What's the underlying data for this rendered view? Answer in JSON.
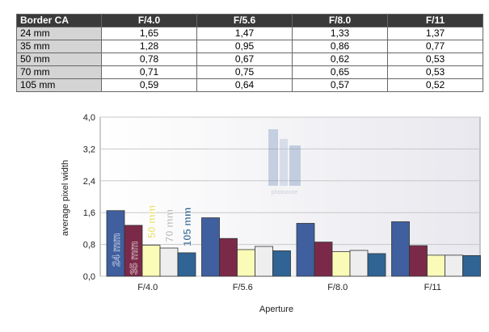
{
  "table": {
    "header": [
      "Border CA",
      "F/4.0",
      "F/5.6",
      "F/8.0",
      "F/11"
    ],
    "rows": [
      [
        "24 mm",
        "1,65",
        "1,47",
        "1,33",
        "1,37"
      ],
      [
        "35 mm",
        "1,28",
        "0,95",
        "0,86",
        "0,77"
      ],
      [
        "50 mm",
        "0,78",
        "0,67",
        "0,62",
        "0,53"
      ],
      [
        "70 mm",
        "0,71",
        "0,75",
        "0,65",
        "0,53"
      ],
      [
        "105 mm",
        "0,59",
        "0,64",
        "0,57",
        "0,52"
      ]
    ]
  },
  "chart_data": {
    "type": "bar",
    "categories": [
      "F/4.0",
      "F/5.6",
      "F/8.0",
      "F/11"
    ],
    "series": [
      {
        "name": "24 mm",
        "values": [
          1.65,
          1.47,
          1.33,
          1.37
        ],
        "color": "#3f5f9f"
      },
      {
        "name": "35 mm",
        "values": [
          1.28,
          0.95,
          0.86,
          0.77
        ],
        "color": "#7a2a48"
      },
      {
        "name": "50 mm",
        "values": [
          0.78,
          0.67,
          0.62,
          0.53
        ],
        "color": "#fbfbb8"
      },
      {
        "name": "70 mm",
        "values": [
          0.71,
          0.75,
          0.65,
          0.53
        ],
        "color": "#eeeeee"
      },
      {
        "name": "105 mm",
        "values": [
          0.59,
          0.64,
          0.57,
          0.52
        ],
        "color": "#2f6494"
      }
    ],
    "xlabel": "Aperture",
    "ylabel": "average pixel width",
    "ylim": [
      0,
      4.0
    ],
    "yticks": [
      "0,0",
      "0,8",
      "1,6",
      "2,4",
      "3,2",
      "4,0"
    ],
    "grid": true,
    "watermark": "photozone",
    "colors": {
      "label_24": "#3f5f9f",
      "label_35": "#7a2a48",
      "label_50": "#e8e06a",
      "label_70": "#bdbdbd",
      "label_105": "#2f6494"
    }
  }
}
